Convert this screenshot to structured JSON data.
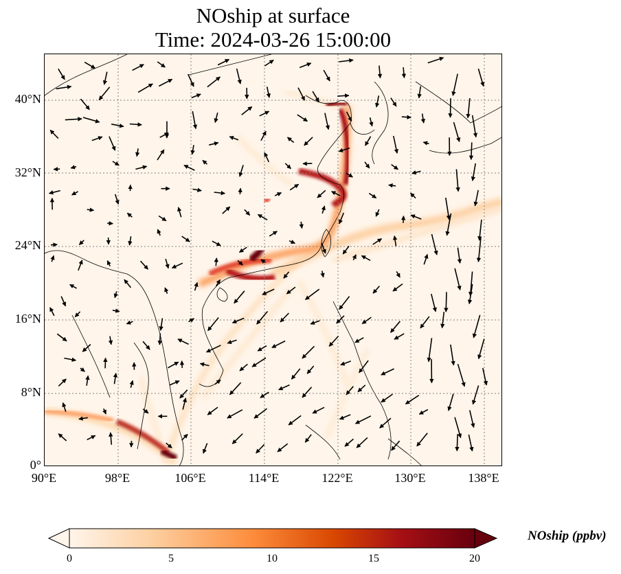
{
  "title": {
    "line1": "NOship at surface",
    "line2": "Time: 2024-03-26 15:00:00"
  },
  "axes": {
    "lat_ticks": [
      "40°N",
      "32°N",
      "24°N",
      "16°N",
      "8°N",
      "0°"
    ],
    "lon_ticks": [
      "90°E",
      "98°E",
      "106°E",
      "114°E",
      "122°E",
      "130°E",
      "138°E"
    ],
    "lon_range": [
      90,
      140
    ],
    "lat_range": [
      0,
      45
    ]
  },
  "colorbar": {
    "label": "NOship (ppbv)",
    "ticks": [
      "0",
      "5",
      "10",
      "15",
      "20"
    ],
    "range": [
      0,
      20
    ],
    "colormap": [
      "#fff5eb",
      "#fdd0a2",
      "#fd8d3c",
      "#d94801",
      "#a50f15",
      "#67000d"
    ]
  },
  "colors": {
    "background": "#fff5ea",
    "gridline": "#808080",
    "coastline": "#000000"
  }
}
